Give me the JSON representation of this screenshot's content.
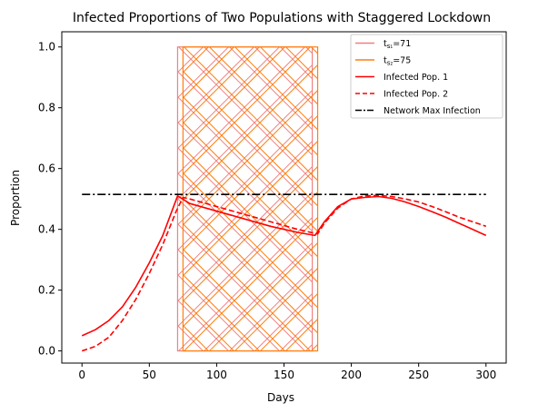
{
  "chart_data": {
    "type": "line",
    "title": "Infected Proportions of Two Populations with Staggered Lockdown",
    "xlabel": "Days",
    "ylabel": "Proportion",
    "xlim": [
      -15,
      315
    ],
    "ylim": [
      -0.04,
      1.05
    ],
    "x_ticks": [
      0,
      50,
      100,
      150,
      200,
      250,
      300
    ],
    "y_ticks": [
      0.0,
      0.2,
      0.4,
      0.6,
      0.8,
      1.0
    ],
    "x_tick_labels": [
      "0",
      "50",
      "100",
      "150",
      "200",
      "250",
      "300"
    ],
    "y_tick_labels": [
      "0.0",
      "0.2",
      "0.4",
      "0.6",
      "0.8",
      "1.0"
    ],
    "grid": false,
    "legend_position": "top-right",
    "lockdown_regions": [
      {
        "label_prefix": "t",
        "label_sub": "s₁",
        "label_value": "=71",
        "x_start": 71,
        "x_end": 171,
        "y_start": 0.0,
        "y_end": 1.0,
        "color": "#f08080",
        "hatch": "cross"
      },
      {
        "label_prefix": "t",
        "label_sub": "s₂",
        "label_value": "=75",
        "x_start": 75,
        "x_end": 175,
        "y_start": 0.0,
        "y_end": 1.0,
        "color": "#ff7f0e",
        "hatch": "cross"
      }
    ],
    "series": [
      {
        "name": "Infected Pop. 1",
        "color": "#ff0000",
        "style": "solid",
        "x": [
          0,
          10,
          20,
          30,
          40,
          50,
          60,
          71,
          80,
          100,
          120,
          140,
          160,
          173,
          180,
          190,
          200,
          210,
          220,
          230,
          240,
          250,
          260,
          270,
          280,
          290,
          300
        ],
        "y": [
          0.05,
          0.07,
          0.1,
          0.145,
          0.21,
          0.29,
          0.38,
          0.51,
          0.485,
          0.46,
          0.435,
          0.41,
          0.39,
          0.38,
          0.425,
          0.475,
          0.5,
          0.505,
          0.508,
          0.502,
          0.49,
          0.475,
          0.458,
          0.44,
          0.42,
          0.4,
          0.38
        ]
      },
      {
        "name": "Infected Pop. 2",
        "color": "#ff0000",
        "style": "dashed",
        "x": [
          0,
          10,
          20,
          30,
          40,
          50,
          60,
          70,
          75,
          80,
          100,
          120,
          140,
          160,
          175,
          180,
          190,
          200,
          210,
          220,
          230,
          240,
          250,
          260,
          270,
          280,
          290,
          300
        ],
        "y": [
          0.0,
          0.015,
          0.045,
          0.1,
          0.17,
          0.255,
          0.35,
          0.46,
          0.505,
          0.5,
          0.475,
          0.45,
          0.425,
          0.4,
          0.385,
          0.42,
          0.47,
          0.5,
          0.51,
          0.512,
          0.508,
          0.5,
          0.49,
          0.475,
          0.458,
          0.44,
          0.425,
          0.41
        ]
      },
      {
        "name": "Network Max Infection",
        "color": "#000000",
        "style": "dashdot",
        "x": [
          0,
          300
        ],
        "y": [
          0.515,
          0.515
        ]
      }
    ]
  }
}
